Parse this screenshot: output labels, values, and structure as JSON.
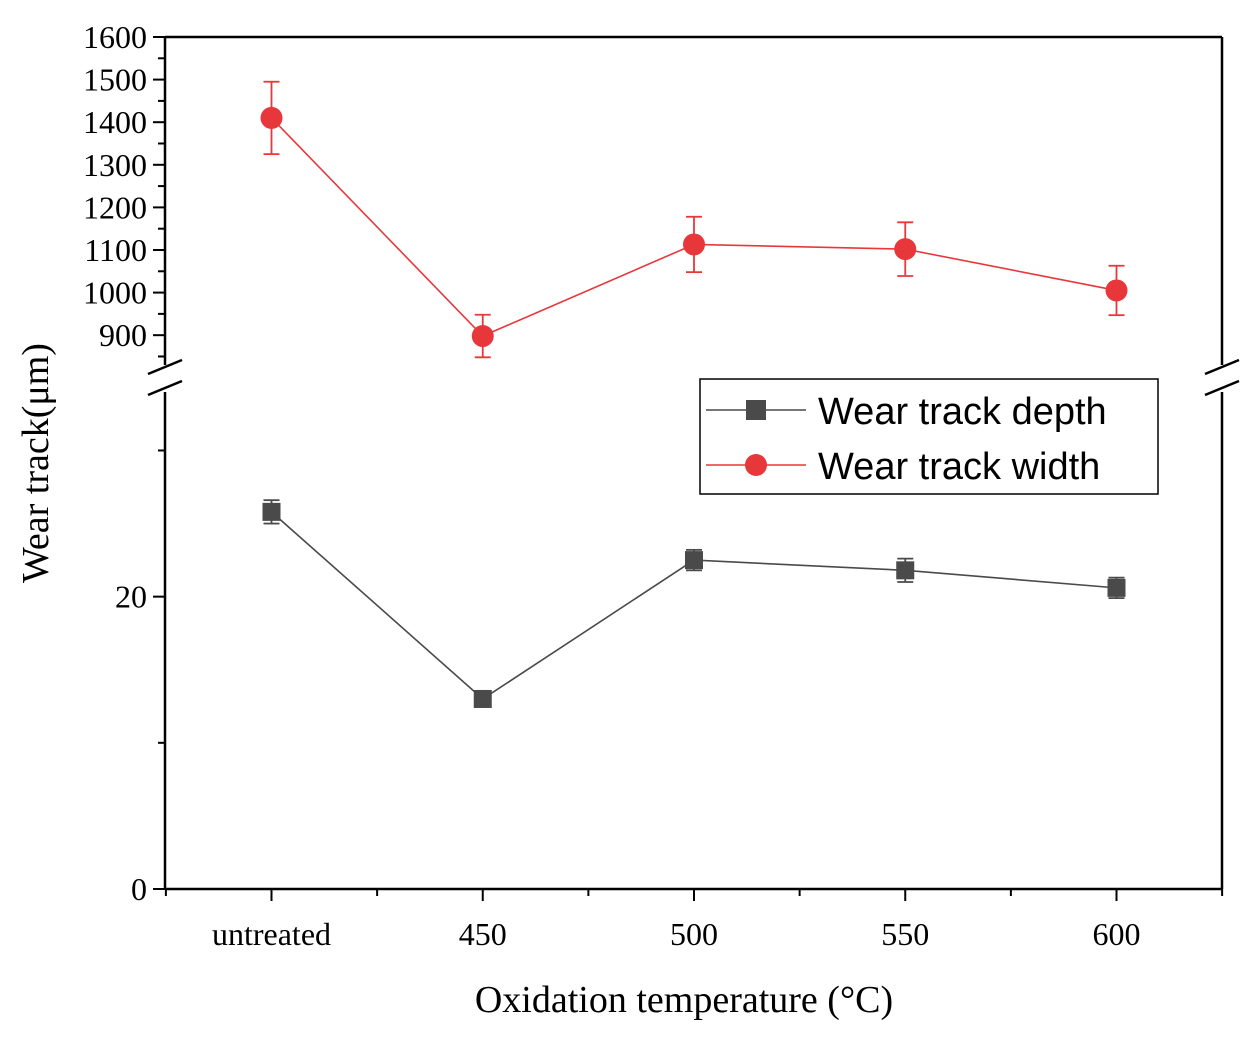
{
  "chart_data": {
    "type": "line",
    "title": "",
    "xlabel": "Oxidation temperature (°C)",
    "ylabel": "Wear track(μm)",
    "categories": [
      "untreated",
      "450",
      "500",
      "550",
      "600"
    ],
    "y_axis_break": {
      "lower_segment": {
        "ylim": [
          0,
          34
        ],
        "major_ticks": [
          0,
          20
        ],
        "minor_ticks": [
          10,
          30
        ]
      },
      "upper_segment": {
        "ylim": [
          830,
          1600
        ],
        "ticks": [
          900,
          1000,
          1100,
          1200,
          1300,
          1400,
          1500,
          1600
        ]
      }
    },
    "series": [
      {
        "name": "Wear track depth",
        "marker": "square",
        "color": "#4a4a4a",
        "segment": "lower_segment",
        "values": [
          25.8,
          13.0,
          22.5,
          21.8,
          20.6
        ],
        "errors": [
          0.8,
          0.3,
          0.7,
          0.8,
          0.7
        ]
      },
      {
        "name": "Wear track width",
        "marker": "circle",
        "color": "#e8373b",
        "segment": "upper_segment",
        "values": [
          1410,
          898,
          1113,
          1102,
          1005
        ],
        "errors": [
          85,
          50,
          65,
          63,
          58
        ]
      }
    ],
    "legend": {
      "placement": "right",
      "entries": [
        "Wear track depth",
        "Wear track width"
      ]
    }
  }
}
